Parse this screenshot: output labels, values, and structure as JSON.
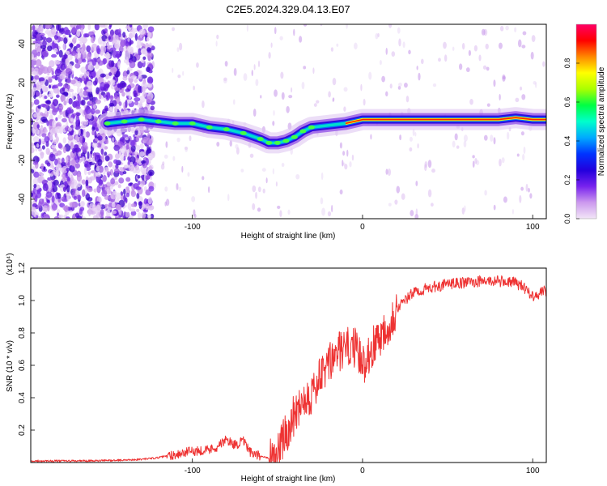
{
  "figure": {
    "title": "C2E5.2024.329.04.13.E07"
  },
  "chart_data": [
    {
      "type": "heatmap",
      "title": "C2E5.2024.329.04.13.E07",
      "xlabel": "Height of straight line (km)",
      "ylabel": "Frequency (Hz)",
      "xlim": [
        -195,
        108
      ],
      "ylim": [
        -50,
        50
      ],
      "xticks": [
        -100,
        0,
        100
      ],
      "yticks": [
        -40,
        -20,
        0,
        20,
        40
      ],
      "colorbar": {
        "label": "Normalized spectral amplitude",
        "range": [
          0,
          1
        ],
        "ticks": [
          "0.0",
          "0.2",
          "0.4",
          "0.6",
          "0.8"
        ],
        "colors": [
          "#f2e6f7",
          "#cc99ee",
          "#7722ee",
          "#2200dd",
          "#0033ff",
          "#00aaff",
          "#00ffcc",
          "#00ff44",
          "#aaff00",
          "#ffff00",
          "#ff8800",
          "#ff0000",
          "#ff0066"
        ]
      },
      "ridge": {
        "name": "",
        "x": [
          -150,
          -140,
          -130,
          -120,
          -110,
          -100,
          -90,
          -80,
          -70,
          -60,
          -55,
          -50,
          -45,
          -40,
          -35,
          -30,
          -20,
          -10,
          0,
          10,
          20,
          30,
          40,
          50,
          60,
          70,
          80,
          90,
          100,
          108
        ],
        "y": [
          -1,
          0,
          1,
          0,
          -1,
          -1,
          -3,
          -4,
          -6,
          -9,
          -11,
          -11,
          -10,
          -8,
          -5,
          -3,
          -2,
          -1,
          1,
          1,
          1,
          1,
          1,
          1,
          1,
          1,
          1,
          2,
          1,
          1
        ]
      },
      "grid": false,
      "legend": "colorbar right"
    },
    {
      "type": "line",
      "title": "",
      "xlabel": "Height of straight line (km)",
      "ylabel": "SNR (10 * v/v)",
      "y_multiplier": "(x10⁴)",
      "xlim": [
        -195,
        108
      ],
      "ylim": [
        0,
        1.2
      ],
      "xticks": [
        -100,
        0,
        100
      ],
      "yticks": [
        "0.2",
        "0.4",
        "0.6",
        "0.8",
        "1.0",
        "1.2"
      ],
      "line_color": "#ee3333",
      "series": [
        {
          "name": "",
          "x": [
            -195,
            -180,
            -160,
            -140,
            -130,
            -120,
            -110,
            -100,
            -90,
            -85,
            -80,
            -75,
            -70,
            -65,
            -60,
            -55,
            -50,
            -45,
            -40,
            -35,
            -30,
            -25,
            -20,
            -15,
            -10,
            -5,
            0,
            5,
            10,
            15,
            20,
            25,
            30,
            40,
            50,
            60,
            70,
            80,
            90,
            95,
            100,
            108
          ],
          "y": [
            0.01,
            0.01,
            0.01,
            0.015,
            0.02,
            0.03,
            0.05,
            0.07,
            0.08,
            0.1,
            0.14,
            0.11,
            0.13,
            0.05,
            0.04,
            0.03,
            0.06,
            0.18,
            0.3,
            0.4,
            0.42,
            0.52,
            0.6,
            0.68,
            0.7,
            0.72,
            0.6,
            0.7,
            0.78,
            0.85,
            0.95,
            1.0,
            1.05,
            1.08,
            1.1,
            1.11,
            1.12,
            1.12,
            1.11,
            1.08,
            1.03,
            1.06
          ]
        }
      ],
      "grid": false,
      "legend": "none"
    }
  ]
}
